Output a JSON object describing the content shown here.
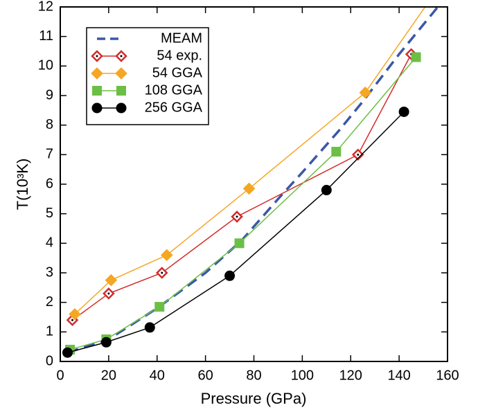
{
  "chart_data": {
    "type": "line",
    "xlabel": "Pressure (GPa)",
    "ylabel": "T(10³K)",
    "xlim": [
      0,
      160
    ],
    "ylim": [
      0,
      12
    ],
    "xticks": [
      0,
      20,
      40,
      60,
      80,
      100,
      120,
      140,
      160
    ],
    "yticks": [
      0,
      1,
      2,
      3,
      4,
      5,
      6,
      7,
      8,
      9,
      10,
      11,
      12
    ],
    "legend": "upper left",
    "series": [
      {
        "name": "MEAM",
        "color": "#3b57a6",
        "dashed": true,
        "marker": "none",
        "x": [
          3,
          20,
          40,
          60,
          75,
          90,
          100,
          115,
          125,
          140,
          156
        ],
        "values": [
          0.3,
          0.75,
          1.8,
          3.0,
          4.1,
          5.5,
          6.4,
          7.8,
          8.8,
          10.4,
          12
        ]
      },
      {
        "name": "54 exp.",
        "color": "#d42a2a",
        "dashed": false,
        "marker": "diamond-open",
        "x": [
          5,
          20,
          42,
          73,
          123,
          145
        ],
        "values": [
          1.4,
          2.3,
          3.0,
          4.9,
          7.0,
          10.4
        ]
      },
      {
        "name": "54 GGA",
        "color": "#f5a623",
        "dashed": false,
        "marker": "diamond",
        "x": [
          6,
          21,
          44,
          78,
          126,
          155
        ],
        "values": [
          1.6,
          2.75,
          3.6,
          5.85,
          9.1,
          12.5
        ]
      },
      {
        "name": "108 GGA",
        "color": "#6cbf45",
        "dashed": false,
        "marker": "square",
        "x": [
          4,
          19,
          41,
          74,
          114,
          147
        ],
        "values": [
          0.4,
          0.75,
          1.85,
          4.0,
          7.1,
          10.3
        ]
      },
      {
        "name": "256 GGA",
        "color": "#000000",
        "dashed": false,
        "marker": "circle",
        "x": [
          3,
          19,
          37,
          70,
          110,
          142
        ],
        "values": [
          0.3,
          0.65,
          1.15,
          2.9,
          5.8,
          8.45
        ]
      }
    ]
  }
}
